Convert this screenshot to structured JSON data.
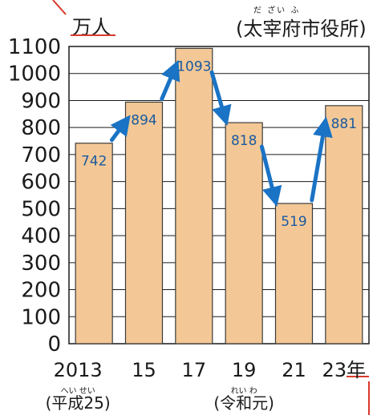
{
  "chart_data": {
    "type": "bar",
    "unit_label": "万人",
    "source": "(太宰府市役所)",
    "source_ruby": "だ ざい ふ",
    "categories": [
      "2013",
      "15",
      "17",
      "19",
      "21",
      "23年"
    ],
    "values": [
      742,
      894,
      1093,
      818,
      519,
      881
    ],
    "value_labels": [
      "742",
      "894",
      "1093",
      "818",
      "519",
      "881"
    ],
    "yticks": [
      "0",
      "100",
      "200",
      "300",
      "400",
      "500",
      "600",
      "700",
      "800",
      "900",
      "1000",
      "1100"
    ],
    "ylim": [
      0,
      1100
    ],
    "era_labels": [
      {
        "text": "(平成25)",
        "ruby": "へい せい",
        "category_index": 0
      },
      {
        "text": "(令和元)",
        "ruby": "れい わ",
        "category_index": 3
      }
    ],
    "trend_arrows": [
      "up",
      "up",
      "down",
      "down",
      "up"
    ],
    "grid": true,
    "colors": {
      "bar": "#f3c896",
      "bar_edge": "#3a3a3a",
      "arrow": "#1a73c4",
      "value_text": "#1a5aa0",
      "accent": "#d83a2a"
    }
  }
}
